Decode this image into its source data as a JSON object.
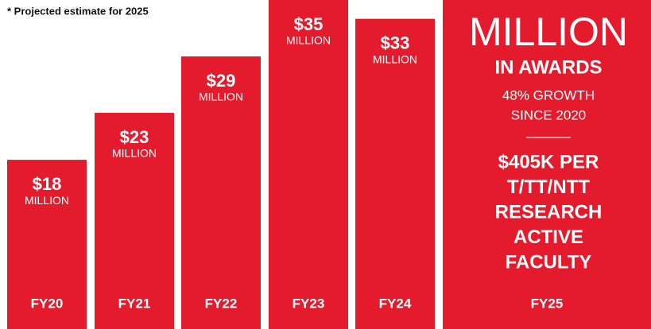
{
  "chart_data": {
    "type": "bar",
    "note": "* Projected estimate for 2025",
    "categories": [
      "FY20",
      "FY21",
      "FY22",
      "FY23",
      "FY24",
      "FY25"
    ],
    "values": [
      18,
      23,
      29,
      35,
      33,
      null
    ],
    "value_labels": [
      "$18",
      "$23",
      "$29",
      "$35",
      "$33",
      null
    ],
    "unit_label": "MILLION",
    "color": "#e31b2d",
    "ylim": [
      0,
      35
    ],
    "highlight": {
      "unit": "MILLION",
      "subtitle": "IN AWARDS",
      "growth": [
        "48% GROWTH",
        "SINCE 2020"
      ],
      "stat": [
        "$405K PER",
        "T/TT/NTT",
        "RESEARCH",
        "ACTIVE",
        "FACULTY"
      ]
    }
  }
}
